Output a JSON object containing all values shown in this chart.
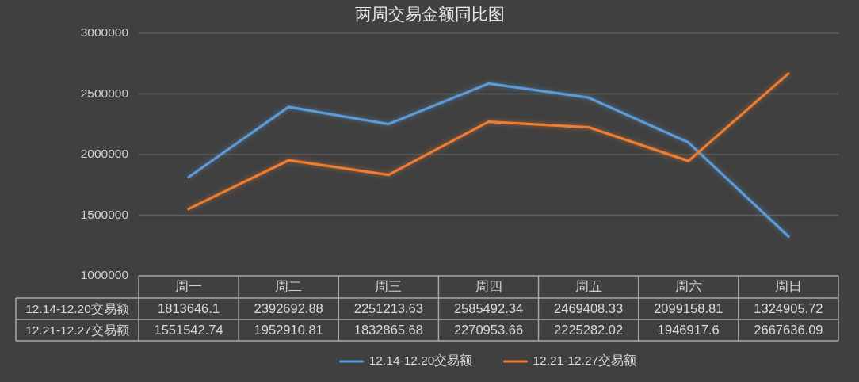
{
  "chart_data": {
    "type": "line",
    "title": "两周交易金额同比图",
    "categories": [
      "周一",
      "周二",
      "周三",
      "周四",
      "周五",
      "周六",
      "周日"
    ],
    "series": [
      {
        "name": "12.14-12.20交易额",
        "color": "#5b9bd5",
        "values": [
          1813646.1,
          2392692.88,
          2251213.63,
          2585492.34,
          2469408.33,
          2099158.81,
          1324905.72
        ]
      },
      {
        "name": "12.21-12.27交易额",
        "color": "#ed7d31",
        "values": [
          1551542.74,
          1952910.81,
          1832865.68,
          2270953.66,
          2225282.02,
          1946917.6,
          2667636.09
        ]
      }
    ],
    "ylim": [
      1000000,
      3000000
    ],
    "yticks": [
      1000000,
      1500000,
      2000000,
      2500000,
      3000000
    ],
    "grid": "y",
    "data_labels": true,
    "legend": "bottom"
  }
}
